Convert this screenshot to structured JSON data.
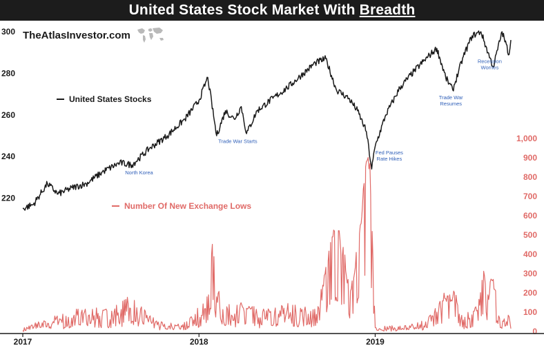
{
  "header": {
    "title_main": "United States Stock Market With ",
    "title_emphasis": "Breadth"
  },
  "brand": {
    "name": "TheAtlasInvestor.com",
    "logo_icon": "world-map-icon"
  },
  "chart_data": {
    "type": "line",
    "title": "United States Stock Market With Breadth",
    "x_ticks": [
      "2017",
      "2018",
      "2019"
    ],
    "x_range": [
      2017.0,
      2019.77
    ],
    "left_axis": {
      "ticks": [
        "300",
        "280",
        "260",
        "240",
        "220"
      ],
      "values": [
        300,
        280,
        260,
        240,
        220
      ],
      "range": [
        200,
        300
      ]
    },
    "right_axis": {
      "ticks": [
        "1,000",
        "900",
        "800",
        "700",
        "600",
        "500",
        "400",
        "300",
        "200",
        "100",
        "0"
      ],
      "values": [
        1000,
        900,
        800,
        700,
        600,
        500,
        400,
        300,
        200,
        100,
        0
      ],
      "range": [
        0,
        1000
      ]
    },
    "legend": [
      {
        "name": "United States Stocks",
        "color": "#1a1a1a",
        "axis": "left"
      },
      {
        "name": "Number Of New Exchange Lows",
        "color": "#e06a67",
        "axis": "right"
      }
    ],
    "series": [
      {
        "name": "United States Stocks",
        "axis": "left",
        "color": "#1a1a1a",
        "points": [
          [
            2017.0,
            215
          ],
          [
            2017.06,
            217
          ],
          [
            2017.14,
            227
          ],
          [
            2017.2,
            222
          ],
          [
            2017.28,
            225
          ],
          [
            2017.36,
            227
          ],
          [
            2017.46,
            233
          ],
          [
            2017.55,
            237
          ],
          [
            2017.62,
            236
          ],
          [
            2017.72,
            244
          ],
          [
            2017.82,
            250
          ],
          [
            2017.92,
            258
          ],
          [
            2018.0,
            267
          ],
          [
            2018.05,
            278
          ],
          [
            2018.1,
            250
          ],
          [
            2018.15,
            262
          ],
          [
            2018.2,
            258
          ],
          [
            2018.24,
            264
          ],
          [
            2018.27,
            251
          ],
          [
            2018.33,
            262
          ],
          [
            2018.42,
            268
          ],
          [
            2018.5,
            273
          ],
          [
            2018.58,
            279
          ],
          [
            2018.66,
            285
          ],
          [
            2018.72,
            287
          ],
          [
            2018.78,
            272
          ],
          [
            2018.85,
            268
          ],
          [
            2018.9,
            262
          ],
          [
            2018.95,
            252
          ],
          [
            2018.98,
            234
          ],
          [
            2019.0,
            245
          ],
          [
            2019.06,
            260
          ],
          [
            2019.14,
            273
          ],
          [
            2019.22,
            281
          ],
          [
            2019.3,
            288
          ],
          [
            2019.35,
            292
          ],
          [
            2019.4,
            278
          ],
          [
            2019.44,
            272
          ],
          [
            2019.5,
            288
          ],
          [
            2019.55,
            298
          ],
          [
            2019.6,
            300
          ],
          [
            2019.64,
            290
          ],
          [
            2019.67,
            283
          ],
          [
            2019.72,
            300
          ],
          [
            2019.76,
            289
          ],
          [
            2019.77,
            296
          ]
        ]
      },
      {
        "name": "Number Of New Exchange Lows",
        "axis": "right",
        "color": "#e06a67",
        "points": [
          [
            2017.0,
            5
          ],
          [
            2017.08,
            40
          ],
          [
            2017.15,
            50
          ],
          [
            2017.25,
            70
          ],
          [
            2017.35,
            100
          ],
          [
            2017.45,
            80
          ],
          [
            2017.55,
            110
          ],
          [
            2017.62,
            150
          ],
          [
            2017.7,
            70
          ],
          [
            2017.8,
            25
          ],
          [
            2017.9,
            30
          ],
          [
            2017.97,
            60
          ],
          [
            2018.05,
            170
          ],
          [
            2018.08,
            470
          ],
          [
            2018.1,
            180
          ],
          [
            2018.18,
            90
          ],
          [
            2018.27,
            120
          ],
          [
            2018.33,
            80
          ],
          [
            2018.42,
            90
          ],
          [
            2018.5,
            110
          ],
          [
            2018.55,
            100
          ],
          [
            2018.62,
            90
          ],
          [
            2018.68,
            120
          ],
          [
            2018.76,
            490
          ],
          [
            2018.8,
            480
          ],
          [
            2018.86,
            210
          ],
          [
            2018.92,
            560
          ],
          [
            2018.95,
            880
          ],
          [
            2018.97,
            870
          ],
          [
            2019.0,
            20
          ],
          [
            2019.1,
            15
          ],
          [
            2019.2,
            20
          ],
          [
            2019.3,
            50
          ],
          [
            2019.4,
            170
          ],
          [
            2019.45,
            200
          ],
          [
            2019.5,
            60
          ],
          [
            2019.58,
            110
          ],
          [
            2019.62,
            290
          ],
          [
            2019.64,
            190
          ],
          [
            2019.67,
            270
          ],
          [
            2019.71,
            20
          ],
          [
            2019.75,
            90
          ],
          [
            2019.77,
            15
          ]
        ]
      }
    ],
    "annotations": [
      {
        "label": "North Korea",
        "x": 2017.66,
        "y": 231.5
      },
      {
        "label": "Trade War Starts",
        "x": 2018.22,
        "y": 246.5
      },
      {
        "label": "Fed Pauses",
        "x": 2019.08,
        "y": 241.0
      },
      {
        "label": "Rate Hikes",
        "x": 2019.08,
        "y": 238.0
      },
      {
        "label": "Trade War",
        "x": 2019.43,
        "y": 267.5
      },
      {
        "label": "Resumes",
        "x": 2019.43,
        "y": 264.5
      },
      {
        "label": "Recession",
        "x": 2019.65,
        "y": 285.0
      },
      {
        "label": "Worries",
        "x": 2019.65,
        "y": 282.0
      }
    ]
  }
}
